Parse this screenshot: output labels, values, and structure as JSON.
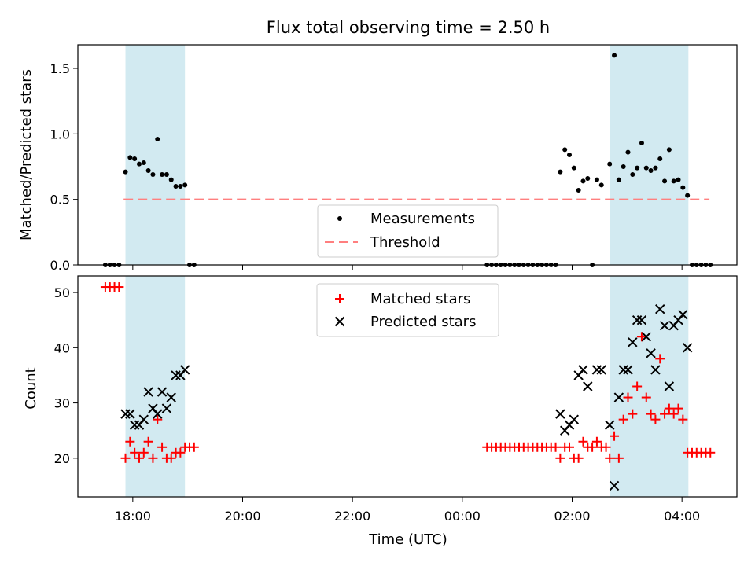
{
  "figure": {
    "title": "Flux total observing time = 2.50 h",
    "xlabel": "Time (UTC)",
    "x_tick_labels": [
      "18:00",
      "20:00",
      "22:00",
      "00:00",
      "02:00",
      "04:00"
    ],
    "shaded_intervals": [
      [
        "17:52",
        "18:57"
      ],
      [
        "02:41",
        "04:07"
      ]
    ],
    "colors": {
      "shade": "#add8e6",
      "measurement": "#000000",
      "threshold": "#ff7f7f",
      "matched": "#ff0000",
      "predicted": "#000000"
    }
  },
  "chart_data": [
    {
      "type": "scatter",
      "ylabel": "Matched/Predicted stars",
      "x_range": [
        "17:00",
        "05:00"
      ],
      "ylim": [
        0,
        1.68
      ],
      "y_ticks": [
        "0.0",
        "0.5",
        "1.0",
        "1.5"
      ],
      "legend": {
        "placement": "lower-center",
        "entries": [
          "Measurements",
          "Threshold"
        ]
      },
      "threshold": {
        "name": "Threshold",
        "value": 0.5,
        "x": [
          "17:50",
          "04:30"
        ]
      },
      "series": [
        {
          "name": "Measurements",
          "points": [
            [
              "17:30",
              0
            ],
            [
              "17:35",
              0
            ],
            [
              "17:40",
              0
            ],
            [
              "17:45",
              0
            ],
            [
              "17:52",
              0.71
            ],
            [
              "17:57",
              0.82
            ],
            [
              "18:02",
              0.81
            ],
            [
              "18:07",
              0.77
            ],
            [
              "18:12",
              0.78
            ],
            [
              "18:17",
              0.72
            ],
            [
              "18:22",
              0.69
            ],
            [
              "18:27",
              0.96
            ],
            [
              "18:32",
              0.69
            ],
            [
              "18:37",
              0.69
            ],
            [
              "18:42",
              0.65
            ],
            [
              "18:47",
              0.6
            ],
            [
              "18:52",
              0.6
            ],
            [
              "18:57",
              0.61
            ],
            [
              "19:02",
              0
            ],
            [
              "19:07",
              0
            ],
            [
              "00:27",
              0
            ],
            [
              "00:32",
              0
            ],
            [
              "00:37",
              0
            ],
            [
              "00:42",
              0
            ],
            [
              "00:47",
              0
            ],
            [
              "00:52",
              0
            ],
            [
              "00:57",
              0
            ],
            [
              "01:02",
              0
            ],
            [
              "01:07",
              0
            ],
            [
              "01:12",
              0
            ],
            [
              "01:17",
              0
            ],
            [
              "01:22",
              0
            ],
            [
              "01:27",
              0
            ],
            [
              "01:32",
              0
            ],
            [
              "01:37",
              0
            ],
            [
              "01:42",
              0
            ],
            [
              "01:47",
              0.71
            ],
            [
              "01:52",
              0.88
            ],
            [
              "01:57",
              0.84
            ],
            [
              "02:02",
              0.74
            ],
            [
              "02:07",
              0.57
            ],
            [
              "02:12",
              0.64
            ],
            [
              "02:17",
              0.66
            ],
            [
              "02:22",
              0
            ],
            [
              "02:27",
              0.65
            ],
            [
              "02:32",
              0.61
            ],
            [
              "02:41",
              0.77
            ],
            [
              "02:46",
              1.6
            ],
            [
              "02:51",
              0.65
            ],
            [
              "02:56",
              0.75
            ],
            [
              "03:01",
              0.86
            ],
            [
              "03:06",
              0.69
            ],
            [
              "03:11",
              0.74
            ],
            [
              "03:16",
              0.93
            ],
            [
              "03:21",
              0.74
            ],
            [
              "03:26",
              0.72
            ],
            [
              "03:31",
              0.74
            ],
            [
              "03:36",
              0.81
            ],
            [
              "03:41",
              0.64
            ],
            [
              "03:46",
              0.88
            ],
            [
              "03:51",
              0.64
            ],
            [
              "03:56",
              0.65
            ],
            [
              "04:01",
              0.59
            ],
            [
              "04:06",
              0.53
            ],
            [
              "04:11",
              0
            ],
            [
              "04:16",
              0
            ],
            [
              "04:21",
              0
            ],
            [
              "04:26",
              0
            ],
            [
              "04:31",
              0
            ]
          ]
        }
      ]
    },
    {
      "type": "scatter",
      "ylabel": "Count",
      "x_range": [
        "17:00",
        "05:00"
      ],
      "ylim": [
        13,
        53
      ],
      "y_ticks": [
        "20",
        "30",
        "40",
        "50"
      ],
      "legend": {
        "placement": "upper-center",
        "entries": [
          "Matched stars",
          "Predicted stars"
        ]
      },
      "series": [
        {
          "name": "Matched stars",
          "marker": "plus",
          "points": [
            [
              "17:30",
              51
            ],
            [
              "17:35",
              51
            ],
            [
              "17:40",
              51
            ],
            [
              "17:45",
              51
            ],
            [
              "17:52",
              20
            ],
            [
              "17:57",
              23
            ],
            [
              "18:02",
              21
            ],
            [
              "18:07",
              20
            ],
            [
              "18:12",
              21
            ],
            [
              "18:17",
              23
            ],
            [
              "18:22",
              20
            ],
            [
              "18:27",
              27
            ],
            [
              "18:32",
              22
            ],
            [
              "18:37",
              20
            ],
            [
              "18:42",
              20
            ],
            [
              "18:47",
              21
            ],
            [
              "18:52",
              21
            ],
            [
              "18:57",
              22
            ],
            [
              "19:02",
              22
            ],
            [
              "19:07",
              22
            ],
            [
              "00:27",
              22
            ],
            [
              "00:32",
              22
            ],
            [
              "00:37",
              22
            ],
            [
              "00:42",
              22
            ],
            [
              "00:47",
              22
            ],
            [
              "00:52",
              22
            ],
            [
              "00:57",
              22
            ],
            [
              "01:02",
              22
            ],
            [
              "01:07",
              22
            ],
            [
              "01:12",
              22
            ],
            [
              "01:17",
              22
            ],
            [
              "01:22",
              22
            ],
            [
              "01:27",
              22
            ],
            [
              "01:32",
              22
            ],
            [
              "01:37",
              22
            ],
            [
              "01:42",
              22
            ],
            [
              "01:47",
              20
            ],
            [
              "01:52",
              22
            ],
            [
              "01:57",
              22
            ],
            [
              "02:02",
              20
            ],
            [
              "02:07",
              20
            ],
            [
              "02:12",
              23
            ],
            [
              "02:17",
              22
            ],
            [
              "02:22",
              22
            ],
            [
              "02:27",
              23
            ],
            [
              "02:32",
              22
            ],
            [
              "02:37",
              22
            ],
            [
              "02:41",
              20
            ],
            [
              "02:46",
              24
            ],
            [
              "02:51",
              20
            ],
            [
              "02:56",
              27
            ],
            [
              "03:01",
              31
            ],
            [
              "03:06",
              28
            ],
            [
              "03:11",
              33
            ],
            [
              "03:16",
              42
            ],
            [
              "03:21",
              31
            ],
            [
              "03:26",
              28
            ],
            [
              "03:31",
              27
            ],
            [
              "03:36",
              38
            ],
            [
              "03:41",
              28
            ],
            [
              "03:46",
              29
            ],
            [
              "03:51",
              28
            ],
            [
              "03:56",
              29
            ],
            [
              "04:01",
              27
            ],
            [
              "04:06",
              21
            ],
            [
              "04:11",
              21
            ],
            [
              "04:16",
              21
            ],
            [
              "04:21",
              21
            ],
            [
              "04:26",
              21
            ],
            [
              "04:31",
              21
            ]
          ]
        },
        {
          "name": "Predicted stars",
          "marker": "x",
          "points": [
            [
              "17:52",
              28
            ],
            [
              "17:57",
              28
            ],
            [
              "18:02",
              26
            ],
            [
              "18:07",
              26
            ],
            [
              "18:12",
              27
            ],
            [
              "18:17",
              32
            ],
            [
              "18:22",
              29
            ],
            [
              "18:27",
              28
            ],
            [
              "18:32",
              32
            ],
            [
              "18:37",
              29
            ],
            [
              "18:42",
              31
            ],
            [
              "18:47",
              35
            ],
            [
              "18:52",
              35
            ],
            [
              "18:57",
              36
            ],
            [
              "01:47",
              28
            ],
            [
              "01:52",
              25
            ],
            [
              "01:57",
              26
            ],
            [
              "02:02",
              27
            ],
            [
              "02:07",
              35
            ],
            [
              "02:12",
              36
            ],
            [
              "02:17",
              33
            ],
            [
              "02:27",
              36
            ],
            [
              "02:32",
              36
            ],
            [
              "02:41",
              26
            ],
            [
              "02:46",
              15
            ],
            [
              "02:51",
              31
            ],
            [
              "02:56",
              36
            ],
            [
              "03:01",
              36
            ],
            [
              "03:06",
              41
            ],
            [
              "03:11",
              45
            ],
            [
              "03:16",
              45
            ],
            [
              "03:21",
              42
            ],
            [
              "03:26",
              39
            ],
            [
              "03:31",
              36
            ],
            [
              "03:36",
              47
            ],
            [
              "03:41",
              44
            ],
            [
              "03:46",
              33
            ],
            [
              "03:51",
              44
            ],
            [
              "03:56",
              45
            ],
            [
              "04:01",
              46
            ],
            [
              "04:06",
              40
            ]
          ]
        }
      ]
    }
  ]
}
